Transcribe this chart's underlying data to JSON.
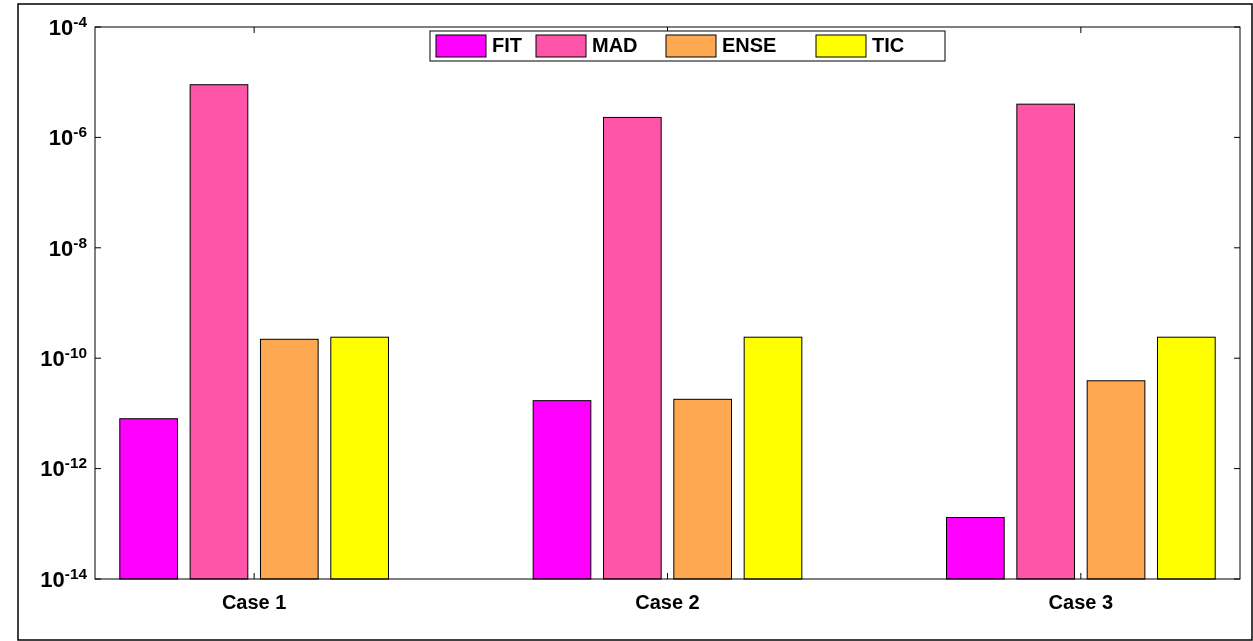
{
  "chart_data": {
    "type": "bar",
    "categories": [
      "Case 1",
      "Case 2",
      "Case 3"
    ],
    "series": [
      {
        "name": "FIT",
        "color": "#ff00ff",
        "values": [
          8e-12,
          1.7e-11,
          1.3e-13
        ]
      },
      {
        "name": "MAD",
        "color": "#ff55a8",
        "values": [
          9e-06,
          2.3e-06,
          4e-06
        ]
      },
      {
        "name": "ENSE",
        "color": "#ffa852",
        "values": [
          2.2e-10,
          1.8e-11,
          3.9e-11
        ]
      },
      {
        "name": "TIC",
        "color": "#ffff00",
        "values": [
          2.4e-10,
          2.4e-10,
          2.4e-10
        ]
      }
    ],
    "log": true,
    "ylim": [
      1e-14,
      0.0001
    ],
    "yticks": [
      {
        "value": 1e-14,
        "label": "10$^{-14}$"
      },
      {
        "value": 1e-12,
        "label": "10$^{-12}$"
      },
      {
        "value": 1e-10,
        "label": "10$^{-10}$"
      },
      {
        "value": 1e-08,
        "label": "10$^{-8}$"
      },
      {
        "value": 1e-06,
        "label": "10$^{-6}$"
      },
      {
        "value": 0.0001,
        "label": "10$^{-4}$"
      }
    ],
    "grid": false,
    "legend": "top"
  }
}
